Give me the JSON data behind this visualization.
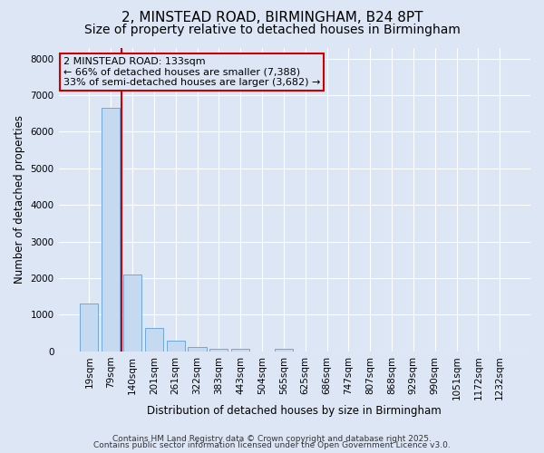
{
  "title1": "2, MINSTEAD ROAD, BIRMINGHAM, B24 8PT",
  "title2": "Size of property relative to detached houses in Birmingham",
  "xlabel": "Distribution of detached houses by size in Birmingham",
  "ylabel": "Number of detached properties",
  "categories": [
    "19sqm",
    "79sqm",
    "140sqm",
    "201sqm",
    "261sqm",
    "322sqm",
    "383sqm",
    "443sqm",
    "504sqm",
    "565sqm",
    "625sqm",
    "686sqm",
    "747sqm",
    "807sqm",
    "868sqm",
    "929sqm",
    "990sqm",
    "1051sqm",
    "1172sqm",
    "1232sqm"
  ],
  "values": [
    1300,
    6650,
    2100,
    650,
    300,
    130,
    80,
    60,
    0,
    60,
    0,
    0,
    0,
    0,
    0,
    0,
    0,
    0,
    0,
    0
  ],
  "bar_color": "#c5d9f1",
  "bar_edge_color": "#6fa8dc",
  "vline_color": "#cc0000",
  "vline_bin_index": 2,
  "annotation_text": "2 MINSTEAD ROAD: 133sqm\n← 66% of detached houses are smaller (7,388)\n33% of semi-detached houses are larger (3,682) →",
  "annotation_box_color": "#cc0000",
  "ylim": [
    0,
    8300
  ],
  "yticks": [
    0,
    1000,
    2000,
    3000,
    4000,
    5000,
    6000,
    7000,
    8000
  ],
  "bg_color": "#dce6f5",
  "grid_color": "#ffffff",
  "footer1": "Contains HM Land Registry data © Crown copyright and database right 2025.",
  "footer2": "Contains public sector information licensed under the Open Government Licence v3.0.",
  "title1_fontsize": 11,
  "title2_fontsize": 10,
  "xlabel_fontsize": 8.5,
  "ylabel_fontsize": 8.5,
  "tick_fontsize": 7.5,
  "annotation_fontsize": 8,
  "footer_fontsize": 6.5
}
